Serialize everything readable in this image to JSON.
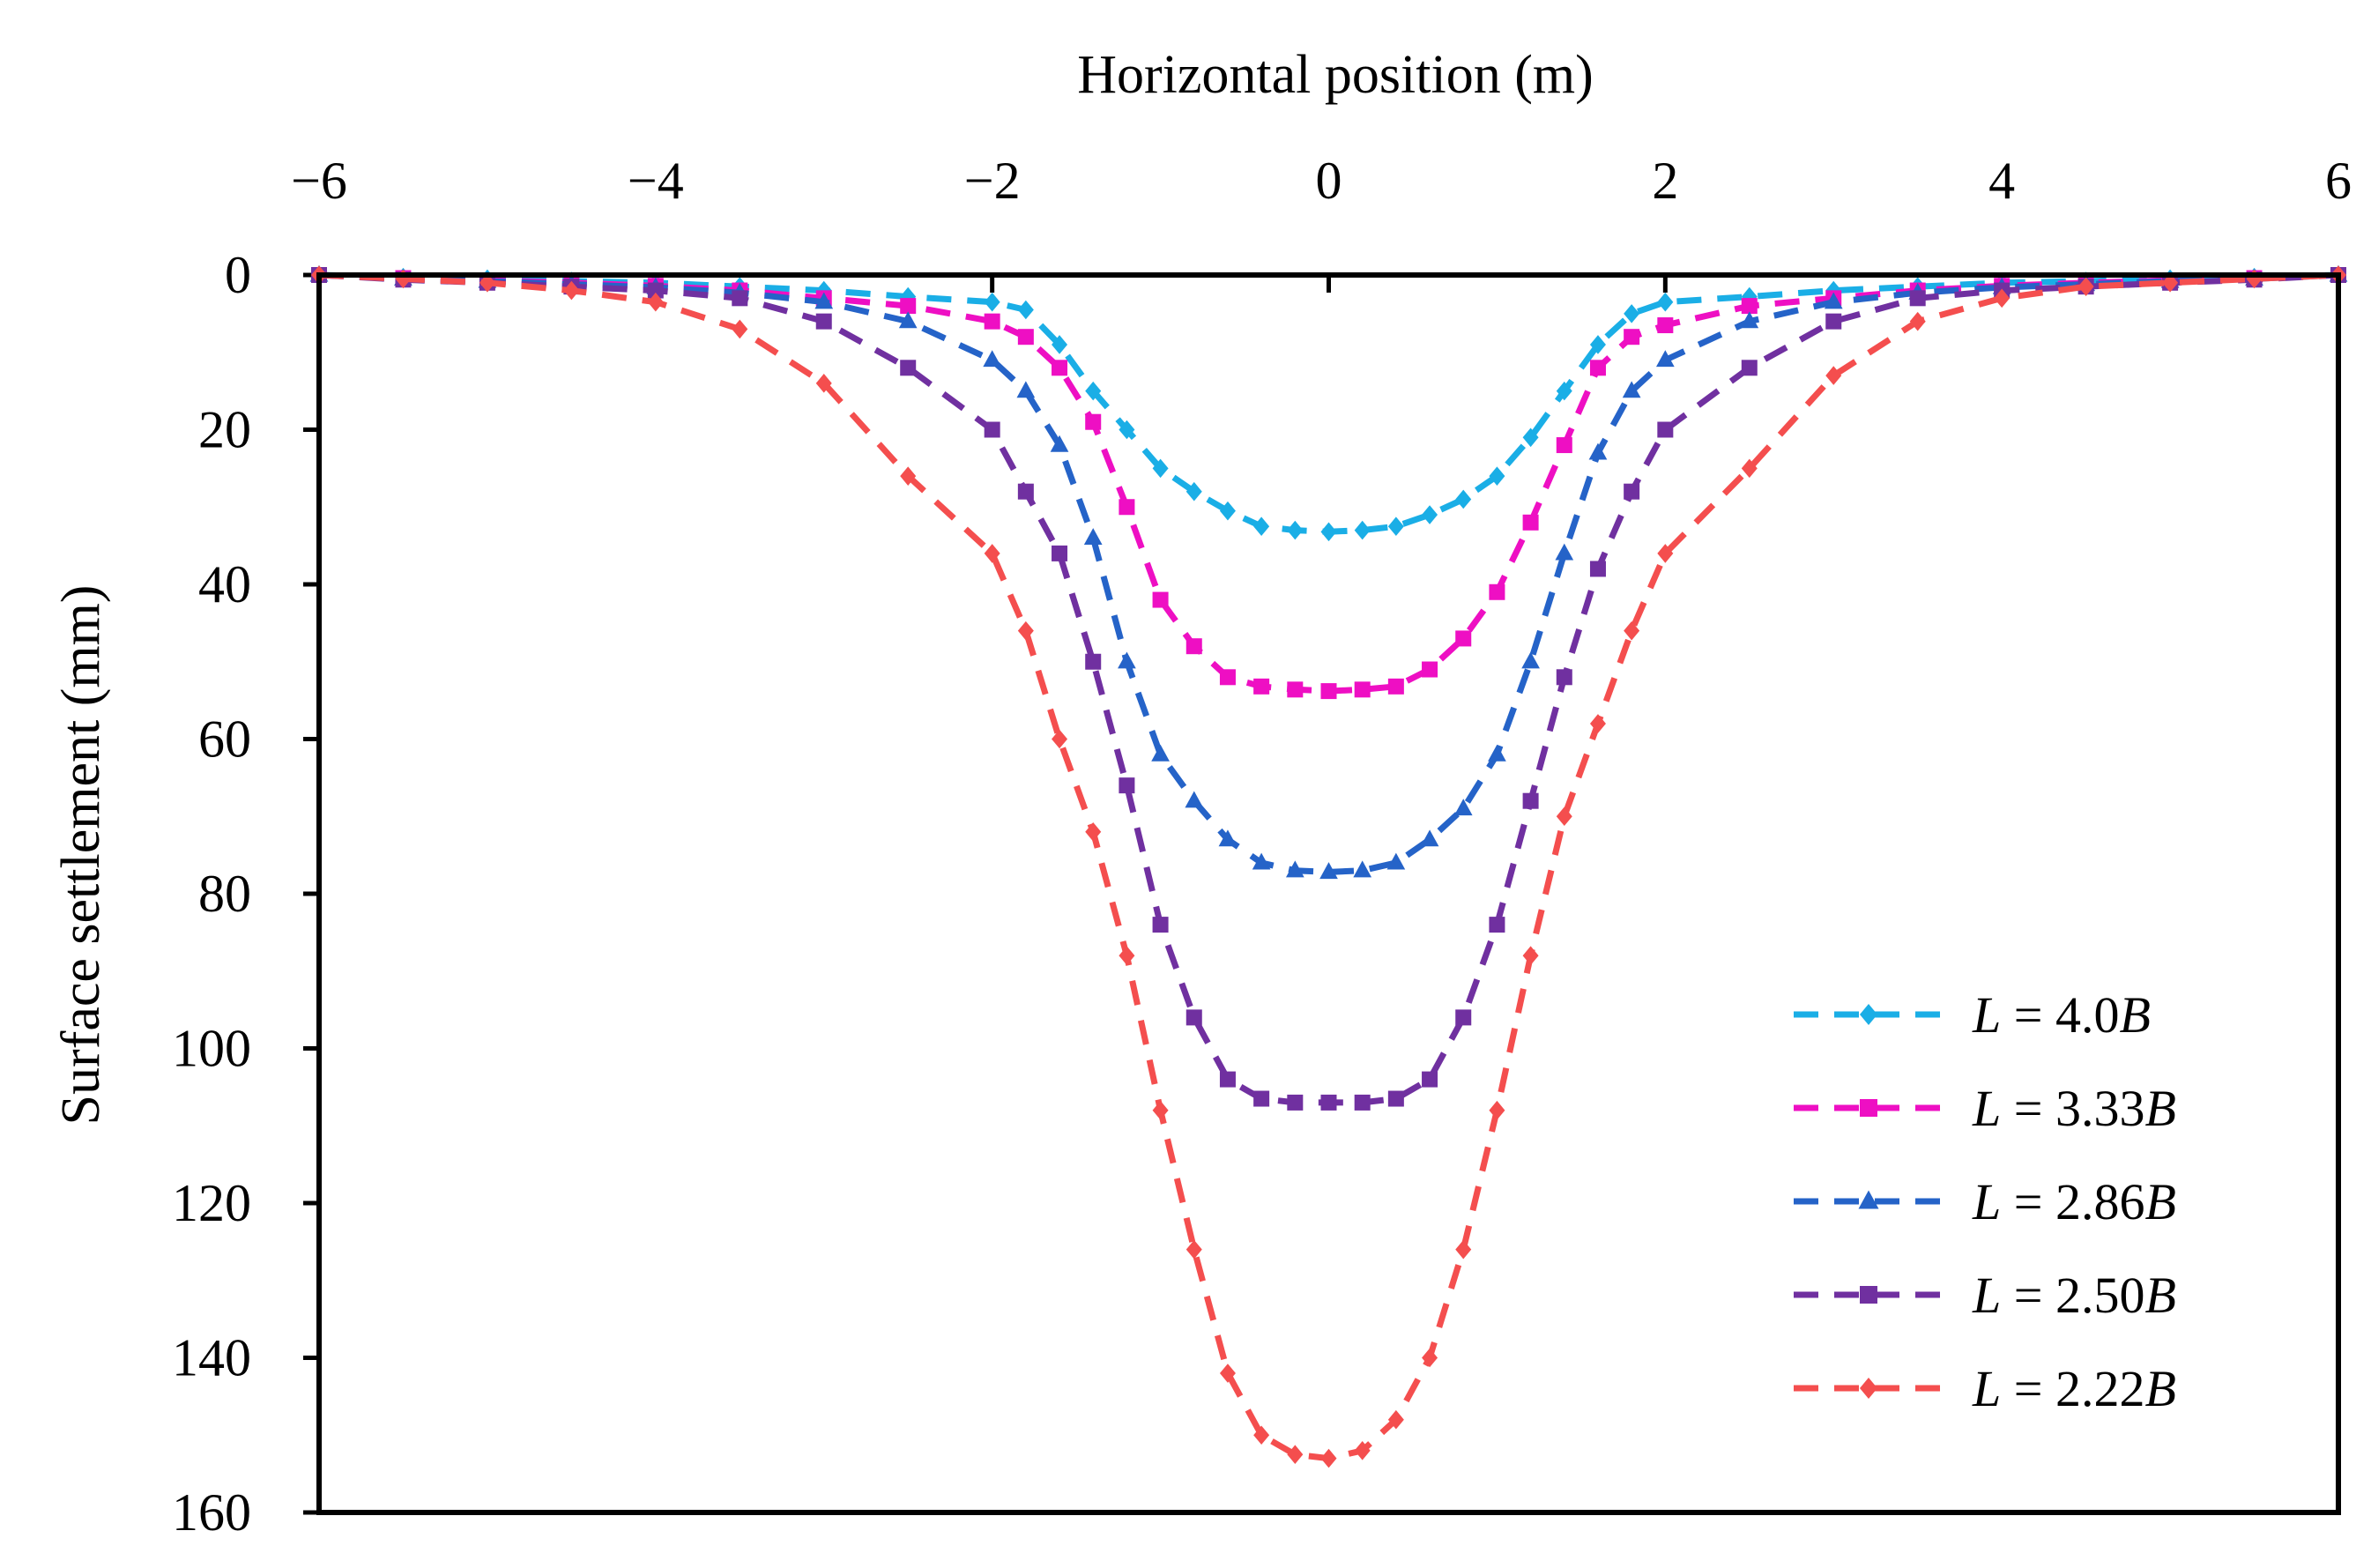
{
  "chart_data": {
    "type": "line",
    "xlabel": "Horizontal position (m)",
    "ylabel": "Surface settlement (mm)",
    "xlim": [
      -6,
      6
    ],
    "ylim": [
      0,
      160
    ],
    "y_inverted": true,
    "x_axis_position": "top",
    "x_ticks": [
      -6,
      -4,
      -2,
      0,
      2,
      4,
      6
    ],
    "x_tick_labels": [
      "−6",
      "−4",
      "−2",
      "0",
      "2",
      "4",
      "6"
    ],
    "y_ticks": [
      0,
      20,
      40,
      60,
      80,
      100,
      120,
      140,
      160
    ],
    "y_tick_labels": [
      "0",
      "20",
      "40",
      "60",
      "80",
      "100",
      "120",
      "140",
      "160"
    ],
    "grid": false,
    "legend_position": "bottom-right",
    "series": [
      {
        "name_var": "L",
        "name_eq": " = 4.0",
        "name_unit": "B",
        "color": "#1AAEE6",
        "marker": "diamond",
        "x": [
          -6,
          -5.5,
          -5,
          -4.5,
          -4,
          -3.5,
          -3,
          -2.5,
          -2,
          -1.8,
          -1.6,
          -1.4,
          -1.2,
          -1,
          -0.8,
          -0.6,
          -0.4,
          -0.2,
          0,
          0.2,
          0.4,
          0.6,
          0.8,
          1,
          1.2,
          1.4,
          1.6,
          1.8,
          2,
          2.5,
          3,
          3.5,
          4,
          4.5,
          5,
          5.5,
          6
        ],
        "y": [
          0,
          0.3,
          0.5,
          0.8,
          1,
          1.5,
          2,
          2.8,
          3.5,
          4.5,
          9,
          15,
          20,
          25,
          28,
          30.5,
          32.5,
          33,
          33.2,
          33,
          32.5,
          31,
          29,
          26,
          21,
          15,
          9,
          5,
          3.5,
          2.8,
          2,
          1.5,
          1,
          0.8,
          0.5,
          0.3,
          0
        ]
      },
      {
        "name_var": "L",
        "name_eq": " = 3.33",
        "name_unit": "B",
        "color": "#EE0FC3",
        "marker": "square",
        "x": [
          -6,
          -5.5,
          -5,
          -4.5,
          -4,
          -3.5,
          -3,
          -2.5,
          -2,
          -1.8,
          -1.6,
          -1.4,
          -1.2,
          -1,
          -0.8,
          -0.6,
          -0.4,
          -0.2,
          0,
          0.2,
          0.4,
          0.6,
          0.8,
          1,
          1.2,
          1.4,
          1.6,
          1.8,
          2,
          2.5,
          3,
          3.5,
          4,
          4.5,
          5,
          5.5,
          6
        ],
        "y": [
          0,
          0.4,
          0.7,
          1,
          1.4,
          2,
          3,
          4,
          6,
          8,
          12,
          19,
          30,
          42,
          48,
          52,
          53.2,
          53.6,
          53.8,
          53.6,
          53.2,
          51,
          47,
          41,
          32,
          22,
          12,
          8,
          6.5,
          4,
          3,
          2,
          1.4,
          1,
          0.7,
          0.4,
          0
        ]
      },
      {
        "name_var": "L",
        "name_eq": " = 2.86",
        "name_unit": "B",
        "color": "#2563C8",
        "marker": "triangle",
        "x": [
          -6,
          -5.5,
          -5,
          -4.5,
          -4,
          -3.5,
          -3,
          -2.5,
          -2,
          -1.8,
          -1.6,
          -1.4,
          -1.2,
          -1,
          -0.8,
          -0.6,
          -0.4,
          -0.2,
          0,
          0.2,
          0.4,
          0.6,
          0.8,
          1,
          1.2,
          1.4,
          1.6,
          1.8,
          2,
          2.5,
          3,
          3.5,
          4,
          4.5,
          5,
          5.5,
          6
        ],
        "y": [
          0,
          0.5,
          0.8,
          1.2,
          1.6,
          2.3,
          3.5,
          6,
          11,
          15,
          22,
          34,
          50,
          62,
          68,
          73,
          76,
          77,
          77.2,
          77,
          76,
          73,
          69,
          62,
          50,
          36,
          23,
          15,
          11,
          6,
          3.5,
          2.3,
          1.6,
          1.2,
          0.8,
          0.5,
          0
        ]
      },
      {
        "name_var": "L",
        "name_eq": " = 2.50",
        "name_unit": "B",
        "color": "#7030A0",
        "marker": "square",
        "x": [
          -6,
          -5.5,
          -5,
          -4.5,
          -4,
          -3.5,
          -3,
          -2.5,
          -2,
          -1.8,
          -1.6,
          -1.4,
          -1.2,
          -1,
          -0.8,
          -0.6,
          -0.4,
          -0.2,
          0,
          0.2,
          0.4,
          0.6,
          0.8,
          1,
          1.2,
          1.4,
          1.6,
          1.8,
          2,
          2.5,
          3,
          3.5,
          4,
          4.5,
          5,
          5.5,
          6
        ],
        "y": [
          0,
          0.6,
          1,
          1.5,
          2,
          3,
          6,
          12,
          20,
          28,
          36,
          50,
          66,
          84,
          96,
          104,
          106.5,
          107,
          107,
          107,
          106.5,
          104,
          96,
          84,
          68,
          52,
          38,
          28,
          20,
          12,
          6,
          3,
          2,
          1.5,
          1,
          0.6,
          0
        ]
      },
      {
        "name_var": "L",
        "name_eq": " = 2.22",
        "name_unit": "B",
        "color": "#F44E4E",
        "marker": "diamond",
        "x": [
          -6,
          -5.5,
          -5,
          -4.5,
          -4,
          -3.5,
          -3,
          -2.5,
          -2,
          -1.8,
          -1.6,
          -1.4,
          -1.2,
          -1,
          -0.8,
          -0.6,
          -0.4,
          -0.2,
          0,
          0.2,
          0.4,
          0.6,
          0.8,
          1,
          1.2,
          1.4,
          1.6,
          1.8,
          2,
          2.5,
          3,
          3.5,
          4,
          4.5,
          5,
          5.5,
          6
        ],
        "y": [
          0,
          0.5,
          1,
          2,
          3.5,
          7,
          14,
          26,
          36,
          46,
          60,
          72,
          88,
          108,
          126,
          142,
          150,
          152.5,
          153,
          152,
          148,
          140,
          126,
          108,
          88,
          70,
          58,
          46,
          36,
          25,
          13,
          6,
          3,
          1.5,
          1,
          0.5,
          0
        ]
      }
    ]
  }
}
